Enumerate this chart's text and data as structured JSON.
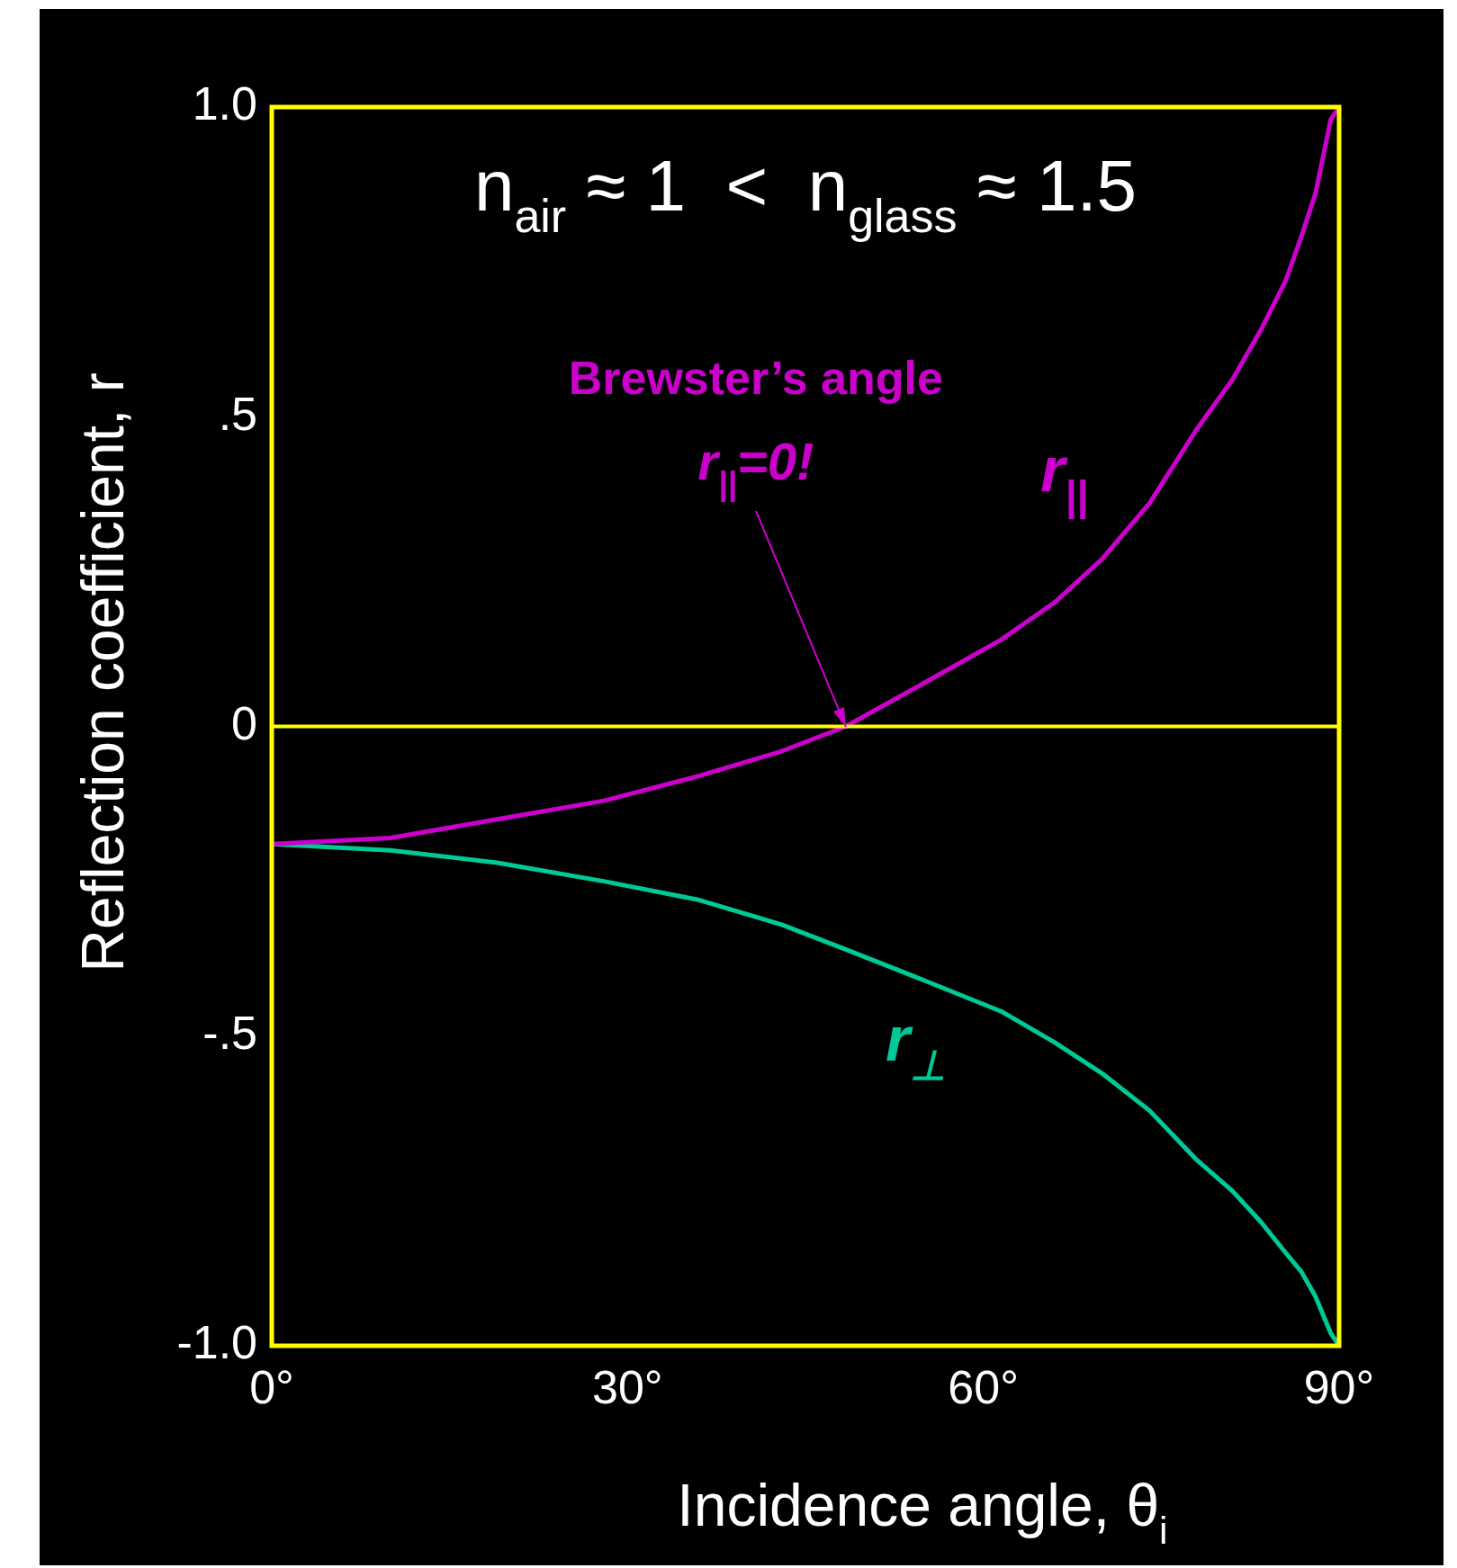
{
  "chart_data": {
    "type": "line",
    "xlabel": "Incidence angle, θ$_{i}$",
    "ylabel": "Reflection coefficient, r",
    "x": [
      0,
      10,
      19,
      28,
      36,
      43,
      48.4,
      55,
      61.5,
      66,
      70,
      74,
      78,
      81,
      83.4,
      85.5,
      86.8,
      88,
      89.3,
      90
    ],
    "series": [
      {
        "name": "r$_{||}$",
        "color": "#cc00cc",
        "values": [
          -0.19,
          -0.18,
          -0.15,
          -0.12,
          -0.08,
          -0.04,
          0,
          0.07,
          0.14,
          0.2,
          0.27,
          0.36,
          0.48,
          0.56,
          0.64,
          0.72,
          0.79,
          0.86,
          0.98,
          1.0
        ]
      },
      {
        "name": "r$_{⊥}$",
        "color": "#00c896",
        "values": [
          -0.19,
          -0.2,
          -0.22,
          -0.25,
          -0.28,
          -0.32,
          -0.36,
          -0.41,
          -0.46,
          -0.51,
          -0.56,
          -0.62,
          -0.7,
          -0.75,
          -0.8,
          -0.85,
          -0.88,
          -0.92,
          -0.98,
          -1.0
        ]
      }
    ],
    "xlim": [
      0,
      90
    ],
    "xticks": [
      {
        "value": 0,
        "label": "0°"
      },
      {
        "value": 30,
        "label": "30°"
      },
      {
        "value": 60,
        "label": "60°"
      },
      {
        "value": 90,
        "label": "90°"
      }
    ],
    "ylim": [
      -1,
      1
    ],
    "yticks": [
      {
        "value": -1,
        "label": "-1.0"
      },
      {
        "value": -0.5,
        "label": "-.5"
      },
      0,
      {
        "value": 0.5,
        "label": ".5"
      },
      {
        "value": 1,
        "label": "1.0"
      }
    ],
    "ref_lines": [
      {
        "axis": "y",
        "value": 0,
        "color": "#ffff00"
      }
    ],
    "annotations": [
      "n$_{air}$ ≈ 1  <  n$_{glass}$ ≈ 1.5",
      {
        "text": "Brewster’s angle r$_{||}$=0!",
        "x": 48.4,
        "y": 0
      }
    ],
    "grid": false,
    "legend": false,
    "marker": "none",
    "line_style": "solid"
  }
}
